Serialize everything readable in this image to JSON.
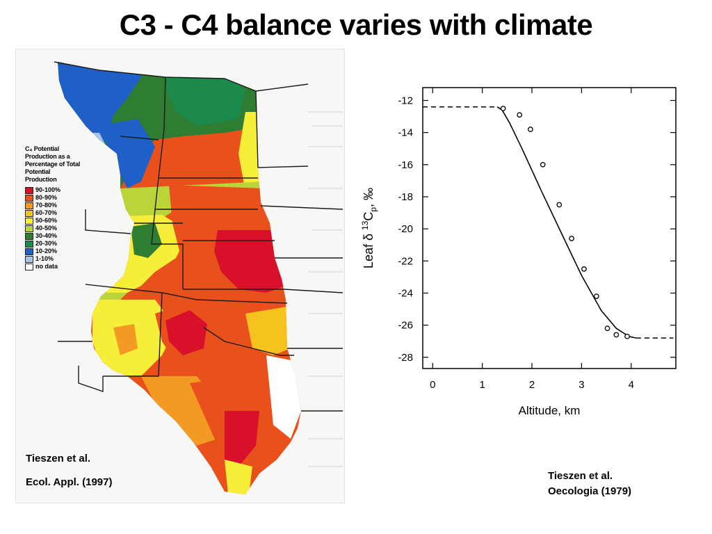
{
  "slide": {
    "title": "C3 - C4 balance varies with climate"
  },
  "map": {
    "legend_title": "C₄ Potential Production as a Percentage of Total Potential Production",
    "legend_items": [
      {
        "label": "90-100%",
        "color": "#d8102a"
      },
      {
        "label": "80-90%",
        "color": "#e8501c"
      },
      {
        "label": "70-80%",
        "color": "#f29a22"
      },
      {
        "label": "60-70%",
        "color": "#f6c21e"
      },
      {
        "label": "50-60%",
        "color": "#f7ee3a"
      },
      {
        "label": "40-50%",
        "color": "#b9d53a"
      },
      {
        "label": "30-40%",
        "color": "#2e7d32"
      },
      {
        "label": "20-30%",
        "color": "#1b8a4a"
      },
      {
        "label": "10-20%",
        "color": "#1f5fc8"
      },
      {
        "label": "1-10%",
        "color": "#a9c4e8"
      },
      {
        "label": "no data",
        "color": "#ffffff"
      }
    ],
    "credit_line1": "Tieszen et al.",
    "credit_line2": "Ecol. Appl. (1997)"
  },
  "right_credit": {
    "line1": "Tieszen et al.",
    "line2": "Oecologia (1979)"
  },
  "chart_data": {
    "type": "scatter",
    "title": "",
    "xlabel": "Altitude, km",
    "ylabel_prefix": "Leaf δ ",
    "ylabel_sup": "13",
    "ylabel_mid": "C",
    "ylabel_sub": "p",
    "ylabel_suffix": ", ‰",
    "xlim": [
      -0.2,
      4.9
    ],
    "ylim": [
      -28.7,
      -11.2
    ],
    "x_ticks": [
      0,
      1,
      2,
      3,
      4
    ],
    "y_ticks": [
      -12,
      -14,
      -16,
      -18,
      -20,
      -22,
      -24,
      -26,
      -28
    ],
    "grid": false,
    "points": [
      {
        "x": 1.42,
        "y": -12.5
      },
      {
        "x": 1.75,
        "y": -12.9
      },
      {
        "x": 1.97,
        "y": -13.8
      },
      {
        "x": 2.22,
        "y": -16.0
      },
      {
        "x": 2.55,
        "y": -18.5
      },
      {
        "x": 2.8,
        "y": -20.6
      },
      {
        "x": 3.05,
        "y": -22.5
      },
      {
        "x": 3.3,
        "y": -24.2
      },
      {
        "x": 3.52,
        "y": -26.2
      },
      {
        "x": 3.7,
        "y": -26.6
      },
      {
        "x": 3.92,
        "y": -26.7
      }
    ],
    "fit_curve": [
      {
        "x": 1.3,
        "y": -12.4
      },
      {
        "x": 1.4,
        "y": -12.6
      },
      {
        "x": 1.55,
        "y": -13.4
      },
      {
        "x": 1.8,
        "y": -15.0
      },
      {
        "x": 2.2,
        "y": -17.7
      },
      {
        "x": 2.6,
        "y": -20.3
      },
      {
        "x": 3.0,
        "y": -22.9
      },
      {
        "x": 3.4,
        "y": -25.1
      },
      {
        "x": 3.7,
        "y": -26.2
      },
      {
        "x": 3.95,
        "y": -26.7
      },
      {
        "x": 4.1,
        "y": -26.8
      }
    ],
    "dashed_left": [
      {
        "x": -0.2,
        "y": -12.4
      },
      {
        "x": 1.3,
        "y": -12.4
      }
    ],
    "dashed_right": [
      {
        "x": 4.1,
        "y": -26.8
      },
      {
        "x": 4.85,
        "y": -26.8
      }
    ]
  }
}
